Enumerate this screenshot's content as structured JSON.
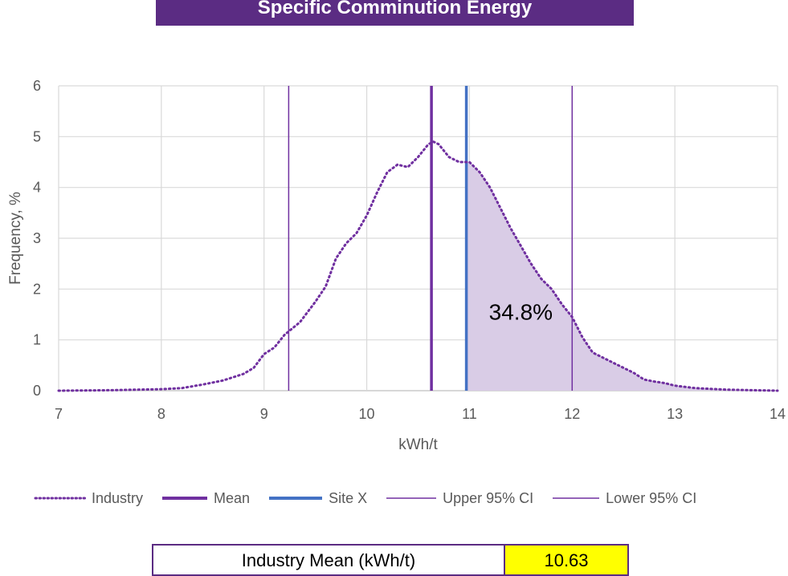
{
  "chart_data": {
    "type": "area",
    "title": "Specific Comminution Energy",
    "xlabel": "kWh/t",
    "ylabel": "Frequency, %",
    "xlim": [
      7,
      14
    ],
    "ylim": [
      0,
      6
    ],
    "xticks": [
      7,
      8,
      9,
      10,
      11,
      12,
      13,
      14
    ],
    "yticks": [
      0,
      1,
      2,
      3,
      4,
      5,
      6
    ],
    "grid": true,
    "legend_position": "bottom",
    "series": [
      {
        "name": "Industry",
        "style": "dotted",
        "color": "#7030a0",
        "x": [
          7.0,
          7.5,
          8.0,
          8.2,
          8.4,
          8.6,
          8.8,
          8.9,
          9.0,
          9.1,
          9.2,
          9.35,
          9.5,
          9.6,
          9.7,
          9.8,
          9.9,
          10.0,
          10.1,
          10.2,
          10.3,
          10.4,
          10.5,
          10.6,
          10.65,
          10.7,
          10.8,
          10.9,
          11.0,
          11.1,
          11.2,
          11.3,
          11.4,
          11.5,
          11.6,
          11.7,
          11.8,
          11.9,
          12.0,
          12.1,
          12.2,
          12.3,
          12.4,
          12.5,
          12.6,
          12.7,
          12.8,
          12.9,
          13.0,
          13.2,
          13.5,
          14.0
        ],
        "y": [
          0.0,
          0.01,
          0.03,
          0.05,
          0.12,
          0.2,
          0.33,
          0.45,
          0.72,
          0.85,
          1.1,
          1.35,
          1.75,
          2.05,
          2.6,
          2.9,
          3.1,
          3.45,
          3.9,
          4.3,
          4.45,
          4.4,
          4.6,
          4.85,
          4.9,
          4.85,
          4.6,
          4.5,
          4.5,
          4.3,
          4.0,
          3.6,
          3.2,
          2.85,
          2.5,
          2.2,
          2.0,
          1.7,
          1.45,
          1.05,
          0.75,
          0.65,
          0.55,
          0.45,
          0.35,
          0.22,
          0.18,
          0.15,
          0.1,
          0.05,
          0.02,
          0.0
        ]
      },
      {
        "name": "Mean",
        "type": "vline",
        "x": 10.63,
        "color": "#7030a0",
        "width": "thick"
      },
      {
        "name": "Site X",
        "type": "vline",
        "x": 10.97,
        "color": "#4472c4",
        "width": "thick"
      },
      {
        "name": "Upper 95% CI",
        "type": "vline",
        "x": 12.0,
        "color": "#7030a0",
        "width": "thin"
      },
      {
        "name": "Lower 95% CI",
        "type": "vline",
        "x": 9.24,
        "color": "#7030a0",
        "width": "thin"
      }
    ],
    "shaded_region": {
      "from_x": 10.97,
      "to_x": 14.0,
      "color": "#d9cce6"
    },
    "annotation": {
      "text": "34.8%",
      "x": 11.5,
      "y": 1.4
    }
  },
  "summary": {
    "label": "Industry Mean (kWh/t)",
    "value": "10.63",
    "value_bg": "#ffff00"
  }
}
